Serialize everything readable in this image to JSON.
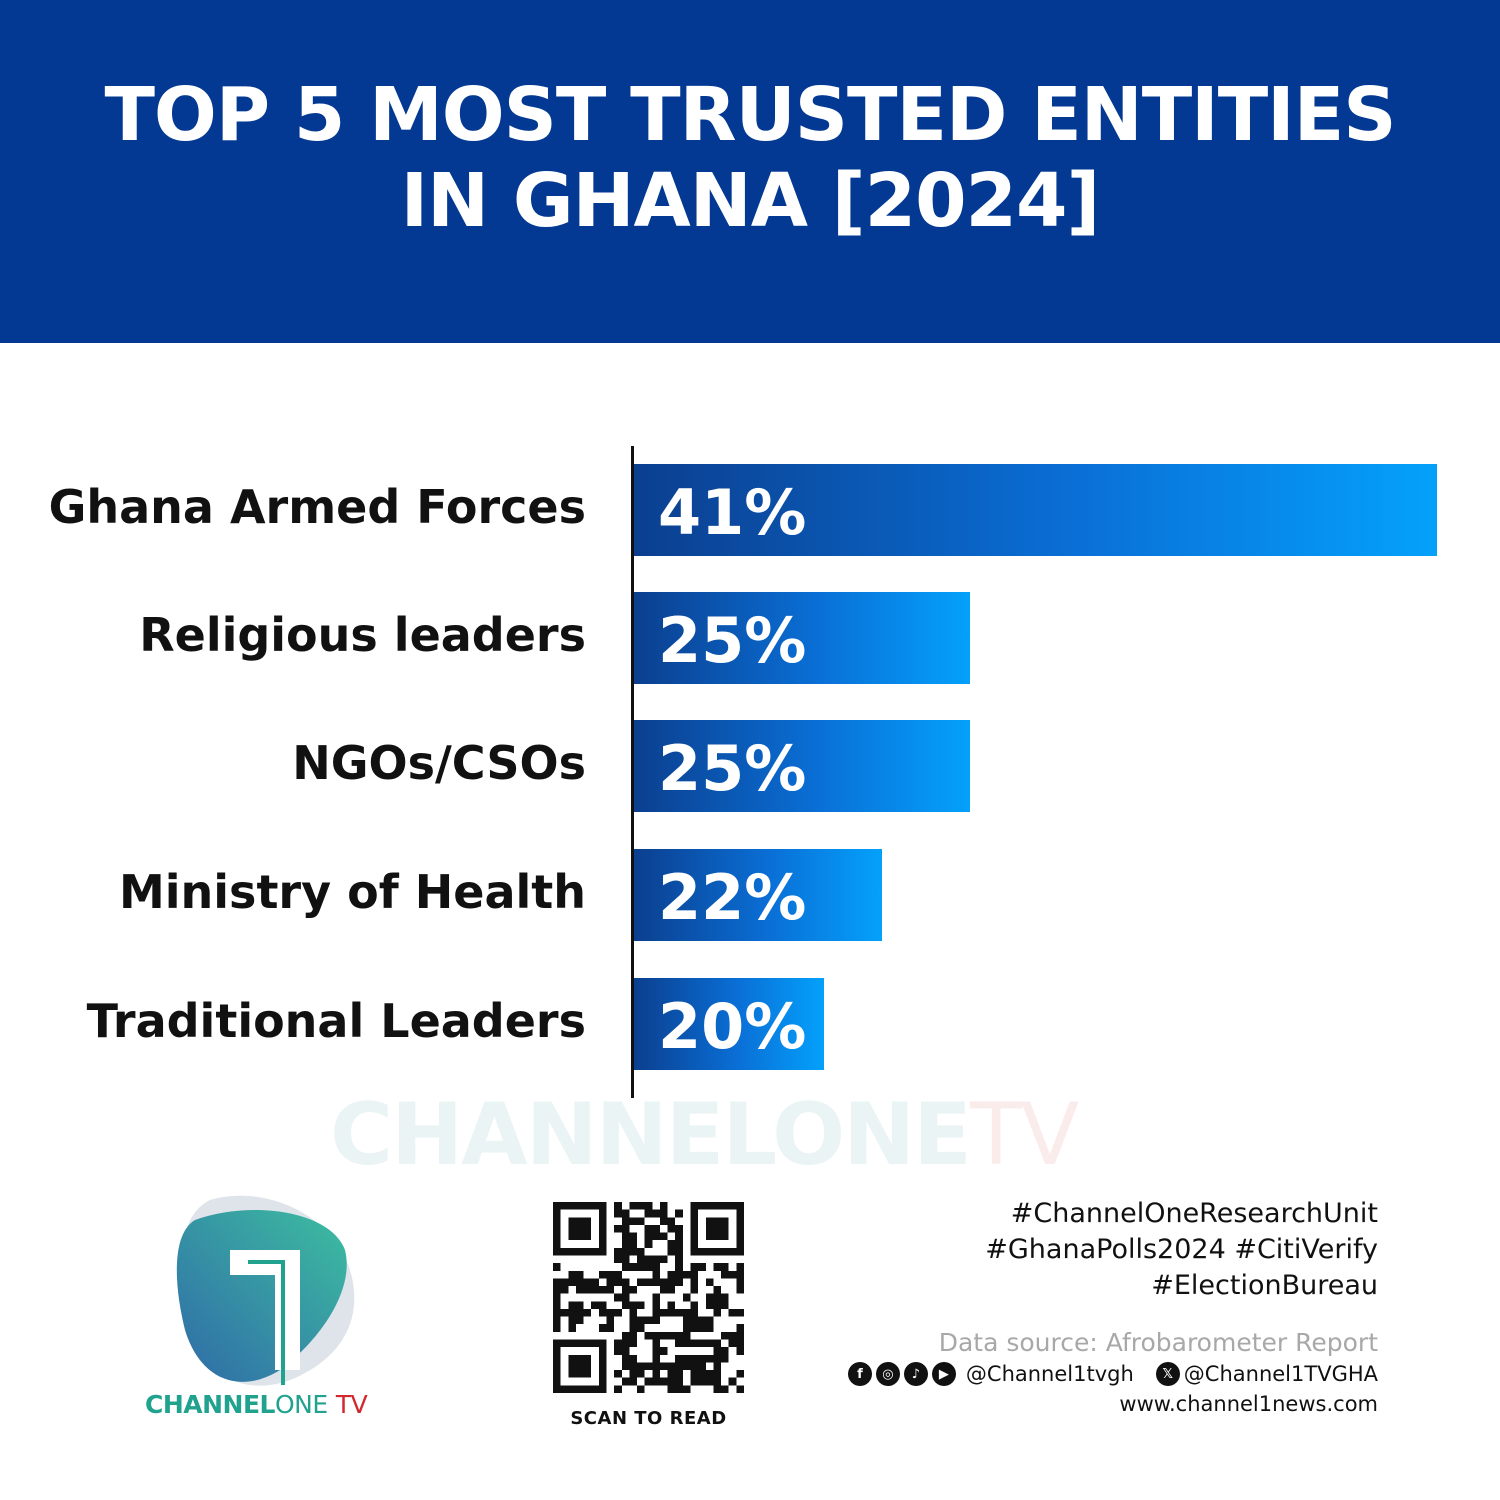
{
  "header": {
    "title_line1": "TOP 5 MOST TRUSTED ENTITIES",
    "title_line2": "IN GHANA [2024]",
    "background": "#033993"
  },
  "chart_data": {
    "type": "bar",
    "orientation": "horizontal",
    "title": "TOP 5 MOST TRUSTED ENTITIES IN GHANA [2024]",
    "categories": [
      "Ghana Armed Forces",
      "Religious leaders",
      "NGOs/CSOs",
      "Ministry of Health",
      "Traditional Leaders"
    ],
    "values": [
      41,
      25,
      25,
      22,
      20
    ],
    "data_labels": [
      "41%",
      "25%",
      "25%",
      "22%",
      "20%"
    ],
    "unit": "%",
    "grid": false,
    "legend": "none",
    "bar_gradient": [
      "#0b3f8f",
      "#04a1fb"
    ]
  },
  "watermark": {
    "part1": "CHANNELONE",
    "part2": "TV"
  },
  "logo": {
    "part1": "CHANNEL",
    "part2": "ONE",
    "part3": "TV",
    "colors": {
      "teal": "#20a28f",
      "red": "#d0282e"
    }
  },
  "qr": {
    "caption": "SCAN TO READ"
  },
  "footer": {
    "hashtags": [
      "#ChannelOneResearchUnit",
      "#GhanaPolls2024 #CitiVerify",
      "#ElectionBureau"
    ],
    "source": "Data source: Afrobarometer Report",
    "social_icons": [
      "facebook-icon",
      "instagram-icon",
      "tiktok-icon",
      "youtube-icon"
    ],
    "handle1": "@Channel1tvgh",
    "handle2": "@Channel1TVGHA",
    "website": "www.channel1news.com"
  }
}
